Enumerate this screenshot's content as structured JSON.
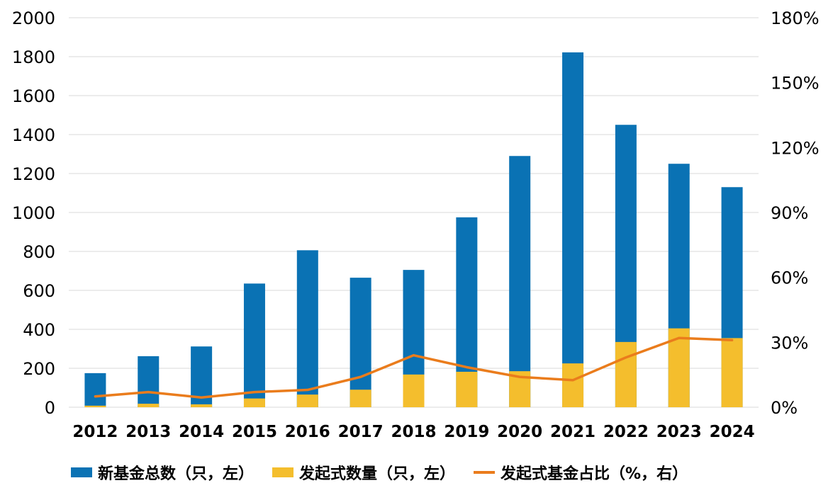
{
  "chart_data": {
    "type": "bar",
    "categories": [
      "2012",
      "2013",
      "2014",
      "2015",
      "2016",
      "2017",
      "2018",
      "2019",
      "2020",
      "2021",
      "2022",
      "2023",
      "2024"
    ],
    "series": [
      {
        "name": "新基金总数（只，左）",
        "type": "bar",
        "axis": "left",
        "color": "#0a72b4",
        "values": [
          175,
          262,
          312,
          635,
          806,
          665,
          705,
          975,
          1290,
          1822,
          1450,
          1250,
          1130
        ]
      },
      {
        "name": "发起式数量（只，左）",
        "type": "bar",
        "axis": "left",
        "color": "#f4be2d",
        "values": [
          8,
          18,
          15,
          45,
          65,
          90,
          168,
          182,
          185,
          225,
          335,
          405,
          355
        ]
      },
      {
        "name": "发起式基金占比（%，右）",
        "type": "line",
        "axis": "right",
        "color": "#ea7c1c",
        "values": [
          5,
          7,
          4.5,
          7,
          8,
          14,
          24,
          18.5,
          14,
          12.5,
          23,
          32,
          31
        ]
      }
    ],
    "left_axis": {
      "ylim": [
        0,
        2000
      ],
      "ticks": [
        "0",
        "200",
        "400",
        "600",
        "800",
        "1000",
        "1200",
        "1400",
        "1600",
        "1800",
        "2000"
      ]
    },
    "right_axis": {
      "ylim": [
        0,
        180
      ],
      "ticks": [
        "0%",
        "30%",
        "60%",
        "90%",
        "120%",
        "150%",
        "180%"
      ]
    },
    "grid": true,
    "legend_position": "bottom"
  }
}
